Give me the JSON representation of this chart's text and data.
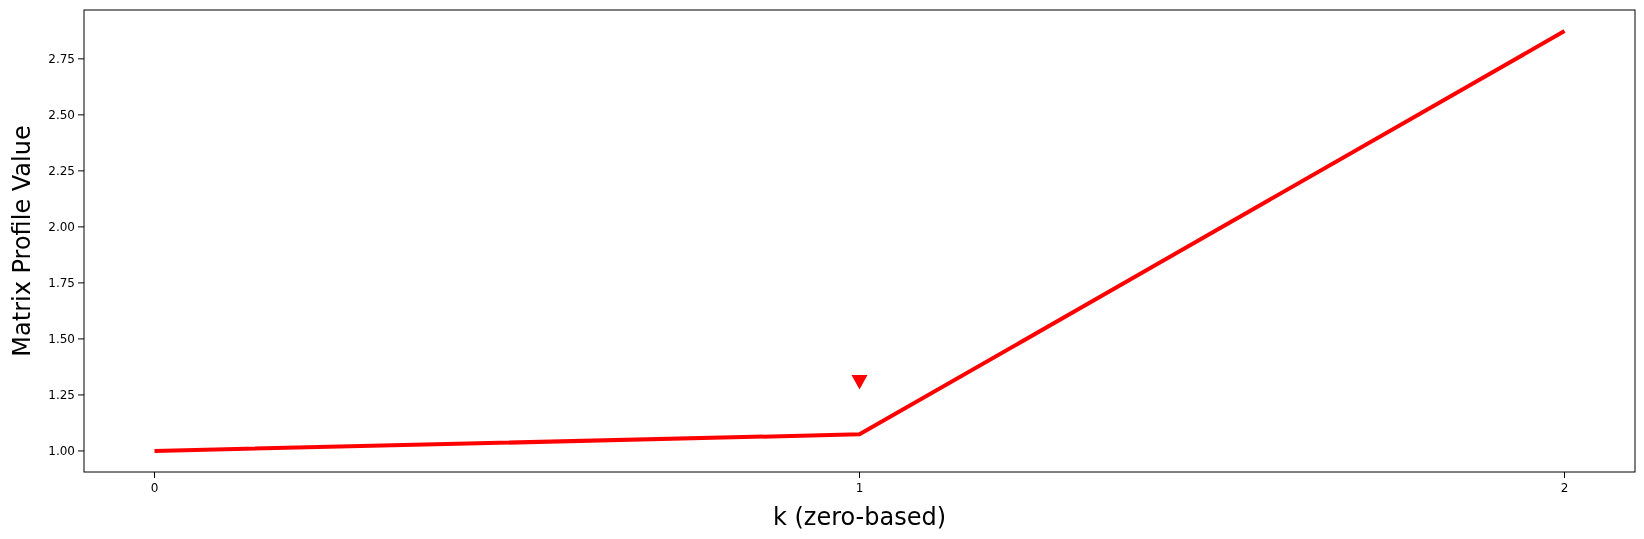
{
  "chart_data": {
    "type": "line",
    "xlabel": "k (zero-based)",
    "ylabel": "Matrix Profile Value",
    "xlim": [
      -0.1,
      2.1
    ],
    "xticks": [
      0,
      1,
      2
    ],
    "ylim": [
      0.906,
      2.968
    ],
    "yticks": [
      {
        "value": 1,
        "label": "1.00"
      },
      {
        "value": 1.25,
        "label": "1.25"
      },
      {
        "value": 1.5,
        "label": "1.50"
      },
      {
        "value": 1.75,
        "label": "1.75"
      },
      {
        "value": 2,
        "label": "2.00"
      },
      {
        "value": 2.25,
        "label": "2.25"
      },
      {
        "value": 2.5,
        "label": "2.50"
      },
      {
        "value": 2.75,
        "label": "2.75"
      }
    ],
    "series": [
      {
        "color": "#ff0000",
        "x": [
          0,
          1,
          2
        ],
        "values": [
          1.0,
          1.074,
          2.874
        ]
      },
      {
        "type": "scatter",
        "color": "#ff0000",
        "marker": "triangle",
        "x": [
          1
        ],
        "values": [
          1.31
        ]
      }
    ]
  }
}
